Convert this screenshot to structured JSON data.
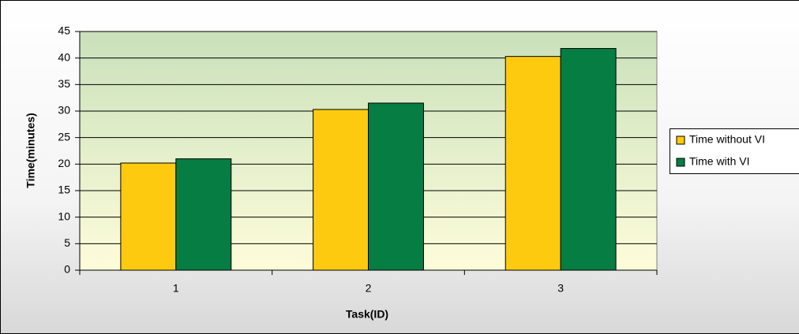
{
  "chart_data": {
    "type": "bar",
    "categories": [
      "1",
      "2",
      "3"
    ],
    "series": [
      {
        "name": "Time without VI",
        "color": "#fdca0f",
        "values": [
          20.2,
          30.3,
          40.3
        ]
      },
      {
        "name": "Time with VI",
        "color": "#067d43",
        "values": [
          21,
          31.5,
          41.8
        ]
      }
    ],
    "x_label": "Task(ID)",
    "y_label": "Time(minutes)",
    "ylim": [
      0,
      45
    ],
    "yticks": [
      0,
      5,
      10,
      15,
      20,
      25,
      30,
      35,
      40,
      45
    ],
    "grid": true,
    "legend": "right"
  }
}
